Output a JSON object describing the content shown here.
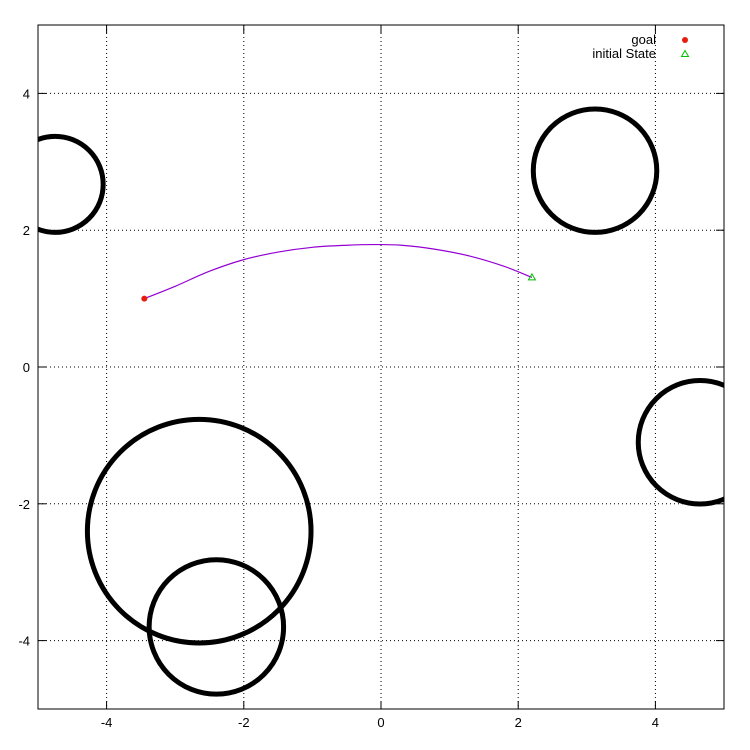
{
  "chart_data": {
    "type": "scatter",
    "title": "",
    "xlabel": "",
    "ylabel": "",
    "xlim": [
      -5,
      5
    ],
    "ylim": [
      -5,
      5
    ],
    "xticks": [
      -4,
      -2,
      0,
      2,
      4
    ],
    "yticks": [
      -4,
      -2,
      0,
      2,
      4
    ],
    "x_tick_labels": [
      "-4",
      "-2",
      "0",
      "2",
      "4"
    ],
    "y_tick_labels": [
      "-4",
      "-2",
      "0",
      "2",
      "4"
    ],
    "grid": true,
    "grid_style": "dotted",
    "legend_position": "top-right",
    "obstacles": [
      {
        "cx": -4.75,
        "cy": 2.67,
        "r": 0.7
      },
      {
        "cx": 3.12,
        "cy": 2.87,
        "r": 0.9
      },
      {
        "cx": 4.65,
        "cy": -1.1,
        "r": 0.9
      },
      {
        "cx": -2.65,
        "cy": -2.4,
        "r": 1.63
      },
      {
        "cx": -2.4,
        "cy": -3.8,
        "r": 0.98
      }
    ],
    "trajectory": {
      "color": "#9400d3",
      "x": [
        -3.45,
        -3.0,
        -2.5,
        -2.0,
        -1.5,
        -1.0,
        -0.5,
        -0.1,
        0.3,
        0.8,
        1.3,
        1.8,
        2.2
      ],
      "y": [
        1.0,
        1.18,
        1.4,
        1.57,
        1.68,
        1.75,
        1.78,
        1.79,
        1.78,
        1.72,
        1.62,
        1.47,
        1.31
      ]
    },
    "series": [
      {
        "name": "goal",
        "marker": "filled-circle",
        "color": "#e51e10",
        "x": -3.45,
        "y": 1.0
      },
      {
        "name": "initial State",
        "marker": "open-triangle",
        "color": "#00c000",
        "x": 2.2,
        "y": 1.31
      }
    ]
  }
}
